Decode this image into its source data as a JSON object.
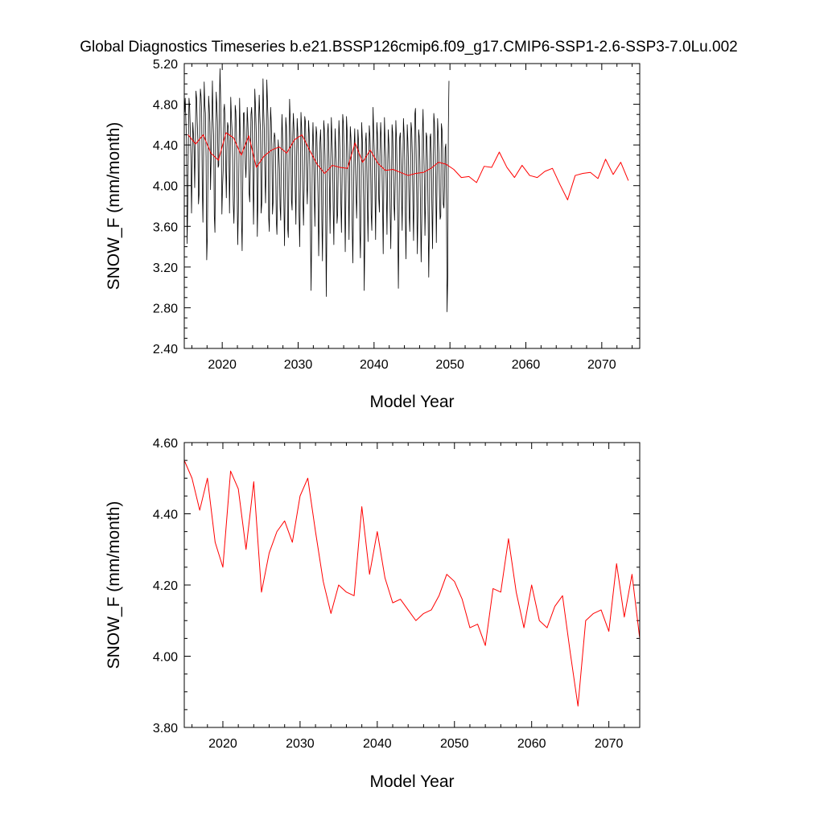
{
  "chart_data": {
    "title": "Global Diagnostics Timeseries b.e21.BSSP126cmip6.f09_g17.CMIP6-SSP1-2.6-SSP3-7.0Lu.002",
    "colors": {
      "monthly": "#000000",
      "annual": "#ff0000",
      "frame": "#000000"
    },
    "panels": [
      {
        "type": "line",
        "xlabel": "Model Year",
        "ylabel": "SNOW_F (mm/month)",
        "xlim": [
          2015,
          2075
        ],
        "ylim": [
          2.4,
          5.2
        ],
        "xticks": [
          2020,
          2030,
          2040,
          2050,
          2060,
          2070
        ],
        "xtick_labels": [
          "2020",
          "2030",
          "2040",
          "2050",
          "2060",
          "2070"
        ],
        "yticks": [
          2.4,
          2.8,
          3.2,
          3.6,
          4.0,
          4.4,
          4.8,
          5.2
        ],
        "ytick_labels": [
          "2.40",
          "2.80",
          "3.20",
          "3.60",
          "4.00",
          "4.40",
          "4.80",
          "5.20"
        ],
        "grid": false,
        "series": [
          {
            "style": "thin line",
            "color": "#000000",
            "x_start": 2015.04,
            "x_step": 0.08333,
            "values": [
              4.72,
              4.86,
              4.65,
              4.46,
              3.43,
              3.8,
              4.41,
              4.86,
              4.78,
              4.55,
              4.28,
              3.73,
              4.18,
              4.62,
              4.51,
              4.38,
              3.98,
              4.4,
              4.93,
              4.86,
              4.63,
              4.45,
              3.82,
              3.92,
              4.62,
              4.95,
              4.88,
              4.73,
              3.98,
              3.64,
              4.29,
              5.02,
              4.8,
              4.71,
              4.28,
              3.27,
              3.49,
              4.18,
              4.88,
              4.77,
              4.62,
              3.96,
              4.25,
              4.58,
              5.03,
              4.67,
              4.46,
              3.7,
              3.54,
              4.38,
              4.92,
              4.79,
              4.63,
              4.18,
              4.2,
              4.78,
              5.15,
              4.86,
              4.46,
              3.72,
              3.98,
              4.15,
              4.74,
              4.8,
              4.64,
              4.2,
              3.88,
              4.35,
              4.62,
              4.58,
              4.44,
              3.73,
              4.19,
              4.87,
              4.68,
              4.55,
              4.27,
              3.81,
              3.63,
              3.95,
              4.79,
              4.73,
              4.52,
              3.99,
              3.42,
              3.74,
              4.26,
              4.86,
              4.51,
              4.36,
              3.66,
              3.36,
              4.01,
              4.71,
              4.72,
              4.54,
              4.22,
              4.08,
              4.31,
              4.77,
              4.62,
              4.43,
              3.93,
              3.84,
              4.19,
              4.7,
              4.77,
              4.61,
              4.16,
              3.62,
              4.09,
              4.95,
              4.8,
              4.59,
              4.31,
              3.5,
              3.86,
              4.61,
              4.89,
              4.68,
              4.54,
              3.73,
              3.82,
              4.41,
              5.05,
              4.75,
              4.55,
              4.11,
              3.83,
              4.27,
              5.04,
              4.84,
              4.64,
              3.68,
              3.55,
              4.36,
              4.77,
              4.63,
              4.38,
              3.72,
              3.84,
              4.41,
              4.52,
              4.48,
              4.22,
              3.66,
              3.52,
              3.95,
              4.45,
              4.34,
              4.17,
              3.79,
              3.66,
              4.36,
              4.7,
              4.47,
              4.31,
              3.83,
              3.41,
              3.95,
              4.67,
              4.58,
              4.3,
              3.58,
              3.49,
              4.15,
              4.85,
              4.66,
              4.45,
              3.85,
              3.76,
              4.49,
              4.71,
              4.55,
              4.36,
              3.96,
              3.62,
              4.23,
              4.66,
              4.52,
              4.3,
              3.71,
              3.4,
              3.98,
              4.72,
              4.58,
              4.36,
              3.9,
              3.61,
              3.97,
              4.68,
              4.63,
              4.4,
              4.04,
              3.82,
              4.18,
              4.64,
              4.52,
              4.19,
              3.54,
              2.97,
              3.55,
              4.37,
              4.62,
              4.37,
              3.92,
              3.6,
              4.2,
              4.58,
              4.51,
              4.24,
              3.87,
              3.31,
              3.72,
              4.42,
              4.55,
              4.32,
              3.66,
              3.26,
              3.96,
              4.64,
              4.55,
              4.29,
              3.78,
              2.91,
              3.62,
              4.51,
              4.61,
              4.36,
              3.97,
              3.53,
              4.21,
              4.67,
              4.48,
              4.26,
              3.76,
              3.42,
              4.1,
              4.56,
              4.36,
              4.2,
              3.63,
              3.72,
              4.24,
              4.64,
              4.48,
              4.24,
              3.85,
              3.54,
              4.04,
              4.7,
              4.62,
              4.36,
              3.92,
              3.35,
              3.87,
              4.68,
              4.54,
              4.32,
              4.02,
              3.47,
              4.19,
              4.58,
              4.47,
              4.2,
              3.6,
              3.24,
              3.77,
              4.38,
              4.56,
              4.24,
              3.96,
              3.68,
              4.02,
              4.55,
              4.44,
              4.2,
              3.56,
              3.29,
              3.88,
              4.62,
              4.46,
              4.24,
              3.86,
              2.97,
              3.49,
              4.43,
              4.52,
              4.28,
              3.82,
              3.45,
              4.06,
              4.59,
              4.49,
              4.28,
              3.72,
              3.56,
              4.21,
              4.77,
              4.52,
              4.31,
              3.96,
              3.47,
              4.08,
              4.62,
              4.5,
              4.28,
              3.87,
              3.74,
              4.34,
              4.62,
              4.46,
              4.22,
              3.8,
              3.33,
              4.06,
              4.67,
              4.44,
              4.28,
              3.96,
              3.52,
              4.13,
              4.55,
              4.41,
              4.22,
              3.74,
              3.38,
              3.91,
              4.6,
              4.52,
              4.2,
              3.82,
              3.66,
              4.05,
              4.64,
              4.47,
              4.14,
              3.63,
              2.99,
              3.61,
              4.47,
              4.52,
              4.27,
              3.91,
              3.56,
              4.14,
              4.66,
              4.52,
              4.26,
              3.7,
              3.28,
              3.87,
              4.6,
              4.44,
              4.2,
              3.72,
              3.55,
              4.1,
              4.62,
              4.55,
              4.31,
              3.82,
              3.46,
              4.03,
              4.7,
              4.76,
              4.36,
              3.89,
              3.33,
              3.78,
              4.55,
              4.48,
              4.24,
              3.75,
              3.25,
              3.66,
              4.5,
              4.75,
              4.4,
              4.06,
              3.51,
              3.86,
              4.52,
              4.48,
              4.24,
              3.7,
              3.1,
              3.62,
              4.47,
              4.51,
              4.31,
              3.8,
              3.38,
              4.02,
              4.71,
              4.62,
              4.4,
              4.06,
              3.44,
              3.98,
              4.66,
              4.5,
              4.32,
              3.91,
              3.67,
              3.7,
              4.61,
              4.55,
              4.36,
              3.82,
              3.78,
              4.02,
              4.37,
              4.41,
              3.83,
              2.76,
              3.1,
              4.56,
              5.03
            ]
          },
          {
            "style": "line",
            "color": "#ff0000",
            "x": [
              2015.5,
              2016.5,
              2017.5,
              2018.5,
              2019.5,
              2020.5,
              2021.5,
              2022.5,
              2023.5,
              2024.5,
              2025.5,
              2026.5,
              2027.5,
              2028.5,
              2029.5,
              2030.5,
              2031.5,
              2032.5,
              2033.5,
              2034.5,
              2035.5,
              2036.5,
              2037.5,
              2038.5,
              2039.5,
              2040.5,
              2041.5,
              2042.5,
              2043.5,
              2044.5,
              2045.5,
              2046.5,
              2047.5,
              2048.5,
              2049.5,
              2050.5,
              2051.5,
              2052.5,
              2053.5,
              2054.5,
              2055.5,
              2056.5,
              2057.5,
              2058.5,
              2059.5,
              2060.5,
              2061.5,
              2062.5,
              2063.5,
              2064.5,
              2065.5,
              2066.5,
              2067.5,
              2068.5,
              2069.5,
              2070.5,
              2071.5,
              2072.5,
              2073.5
            ],
            "values": [
              4.5,
              4.41,
              4.5,
              4.32,
              4.25,
              4.52,
              4.47,
              4.3,
              4.49,
              4.18,
              4.29,
              4.35,
              4.38,
              4.32,
              4.45,
              4.5,
              4.35,
              4.21,
              4.12,
              4.2,
              4.18,
              4.17,
              4.42,
              4.23,
              4.35,
              4.22,
              4.15,
              4.16,
              4.13,
              4.1,
              4.12,
              4.13,
              4.17,
              4.23,
              4.21,
              4.16,
              4.08,
              4.09,
              4.03,
              4.19,
              4.18,
              4.33,
              4.18,
              4.08,
              4.2,
              4.1,
              4.08,
              4.14,
              4.17,
              4.01,
              3.86,
              4.1,
              4.12,
              4.13,
              4.07,
              4.26,
              4.11,
              4.23,
              4.05
            ]
          }
        ]
      },
      {
        "type": "line",
        "xlabel": "Model Year",
        "ylabel": "SNOW_F (mm/month)",
        "xlim": [
          2015,
          2074
        ],
        "ylim": [
          3.8,
          4.6
        ],
        "xticks": [
          2020,
          2030,
          2040,
          2050,
          2060,
          2070
        ],
        "xtick_labels": [
          "2020",
          "2030",
          "2040",
          "2050",
          "2060",
          "2070"
        ],
        "yticks": [
          3.8,
          4.0,
          4.2,
          4.4,
          4.6
        ],
        "ytick_labels": [
          "3.80",
          "4.00",
          "4.20",
          "4.40",
          "4.60"
        ],
        "grid": false,
        "series": [
          {
            "style": "line",
            "color": "#ff0000",
            "x": [
              2015,
              2016,
              2017,
              2018,
              2019,
              2020,
              2021,
              2022,
              2023,
              2024,
              2025,
              2026,
              2027,
              2028,
              2029,
              2030,
              2031,
              2032,
              2033,
              2034,
              2035,
              2036,
              2037,
              2038,
              2039,
              2040,
              2041,
              2042,
              2043,
              2044,
              2045,
              2046,
              2047,
              2048,
              2049,
              2050,
              2051,
              2052,
              2053,
              2054,
              2055,
              2056,
              2057,
              2058,
              2059,
              2060,
              2061,
              2062,
              2063,
              2064,
              2065,
              2066,
              2067,
              2068,
              2069,
              2070,
              2071,
              2072,
              2073,
              2074
            ],
            "values": [
              4.55,
              4.5,
              4.41,
              4.5,
              4.32,
              4.25,
              4.52,
              4.47,
              4.3,
              4.49,
              4.18,
              4.29,
              4.35,
              4.38,
              4.32,
              4.45,
              4.5,
              4.35,
              4.21,
              4.12,
              4.2,
              4.18,
              4.17,
              4.42,
              4.23,
              4.35,
              4.22,
              4.15,
              4.16,
              4.13,
              4.1,
              4.12,
              4.13,
              4.17,
              4.23,
              4.21,
              4.16,
              4.08,
              4.09,
              4.03,
              4.19,
              4.18,
              4.33,
              4.18,
              4.08,
              4.2,
              4.1,
              4.08,
              4.14,
              4.17,
              4.01,
              3.86,
              4.1,
              4.12,
              4.13,
              4.07,
              4.26,
              4.11,
              4.23,
              4.05
            ]
          }
        ]
      }
    ]
  }
}
